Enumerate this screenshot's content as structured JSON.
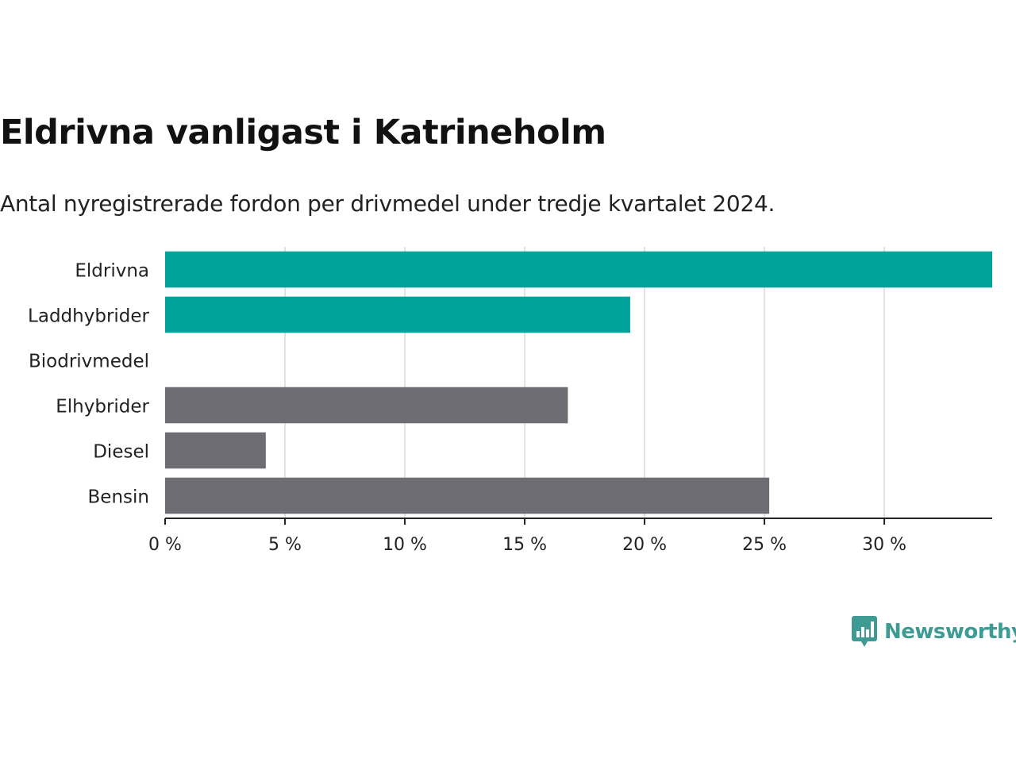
{
  "title": "Eldrivna vanligast i Katrineholm",
  "subtitle": "Antal nyregistrerade fordon per drivmedel under tredje kvartalet 2024.",
  "brand": {
    "name": "Newsworthy",
    "color": "#3d9b94",
    "logo_icon": "bar-chart-speech-bubble-icon"
  },
  "colors": {
    "highlight": "#00a39a",
    "default": "#6e6d73",
    "grid": "#d9d9d9",
    "axis": "#222222",
    "text": "#222222"
  },
  "chart_data": {
    "type": "bar",
    "orientation": "horizontal",
    "categories": [
      "Eldrivna",
      "Laddhybrider",
      "Biodrivmedel",
      "Elhybrider",
      "Diesel",
      "Bensin"
    ],
    "values": [
      34.5,
      19.4,
      0,
      16.8,
      4.2,
      25.2
    ],
    "highlighted": [
      true,
      true,
      false,
      false,
      false,
      false
    ],
    "unit": "%",
    "xlim": [
      0,
      34.5
    ],
    "xticks": [
      0,
      5,
      10,
      15,
      20,
      25,
      30
    ],
    "xtick_labels": [
      "0 %",
      "5 %",
      "10 %",
      "15 %",
      "20 %",
      "25 %",
      "30 %"
    ],
    "grid": "vertical",
    "legend": "none"
  }
}
